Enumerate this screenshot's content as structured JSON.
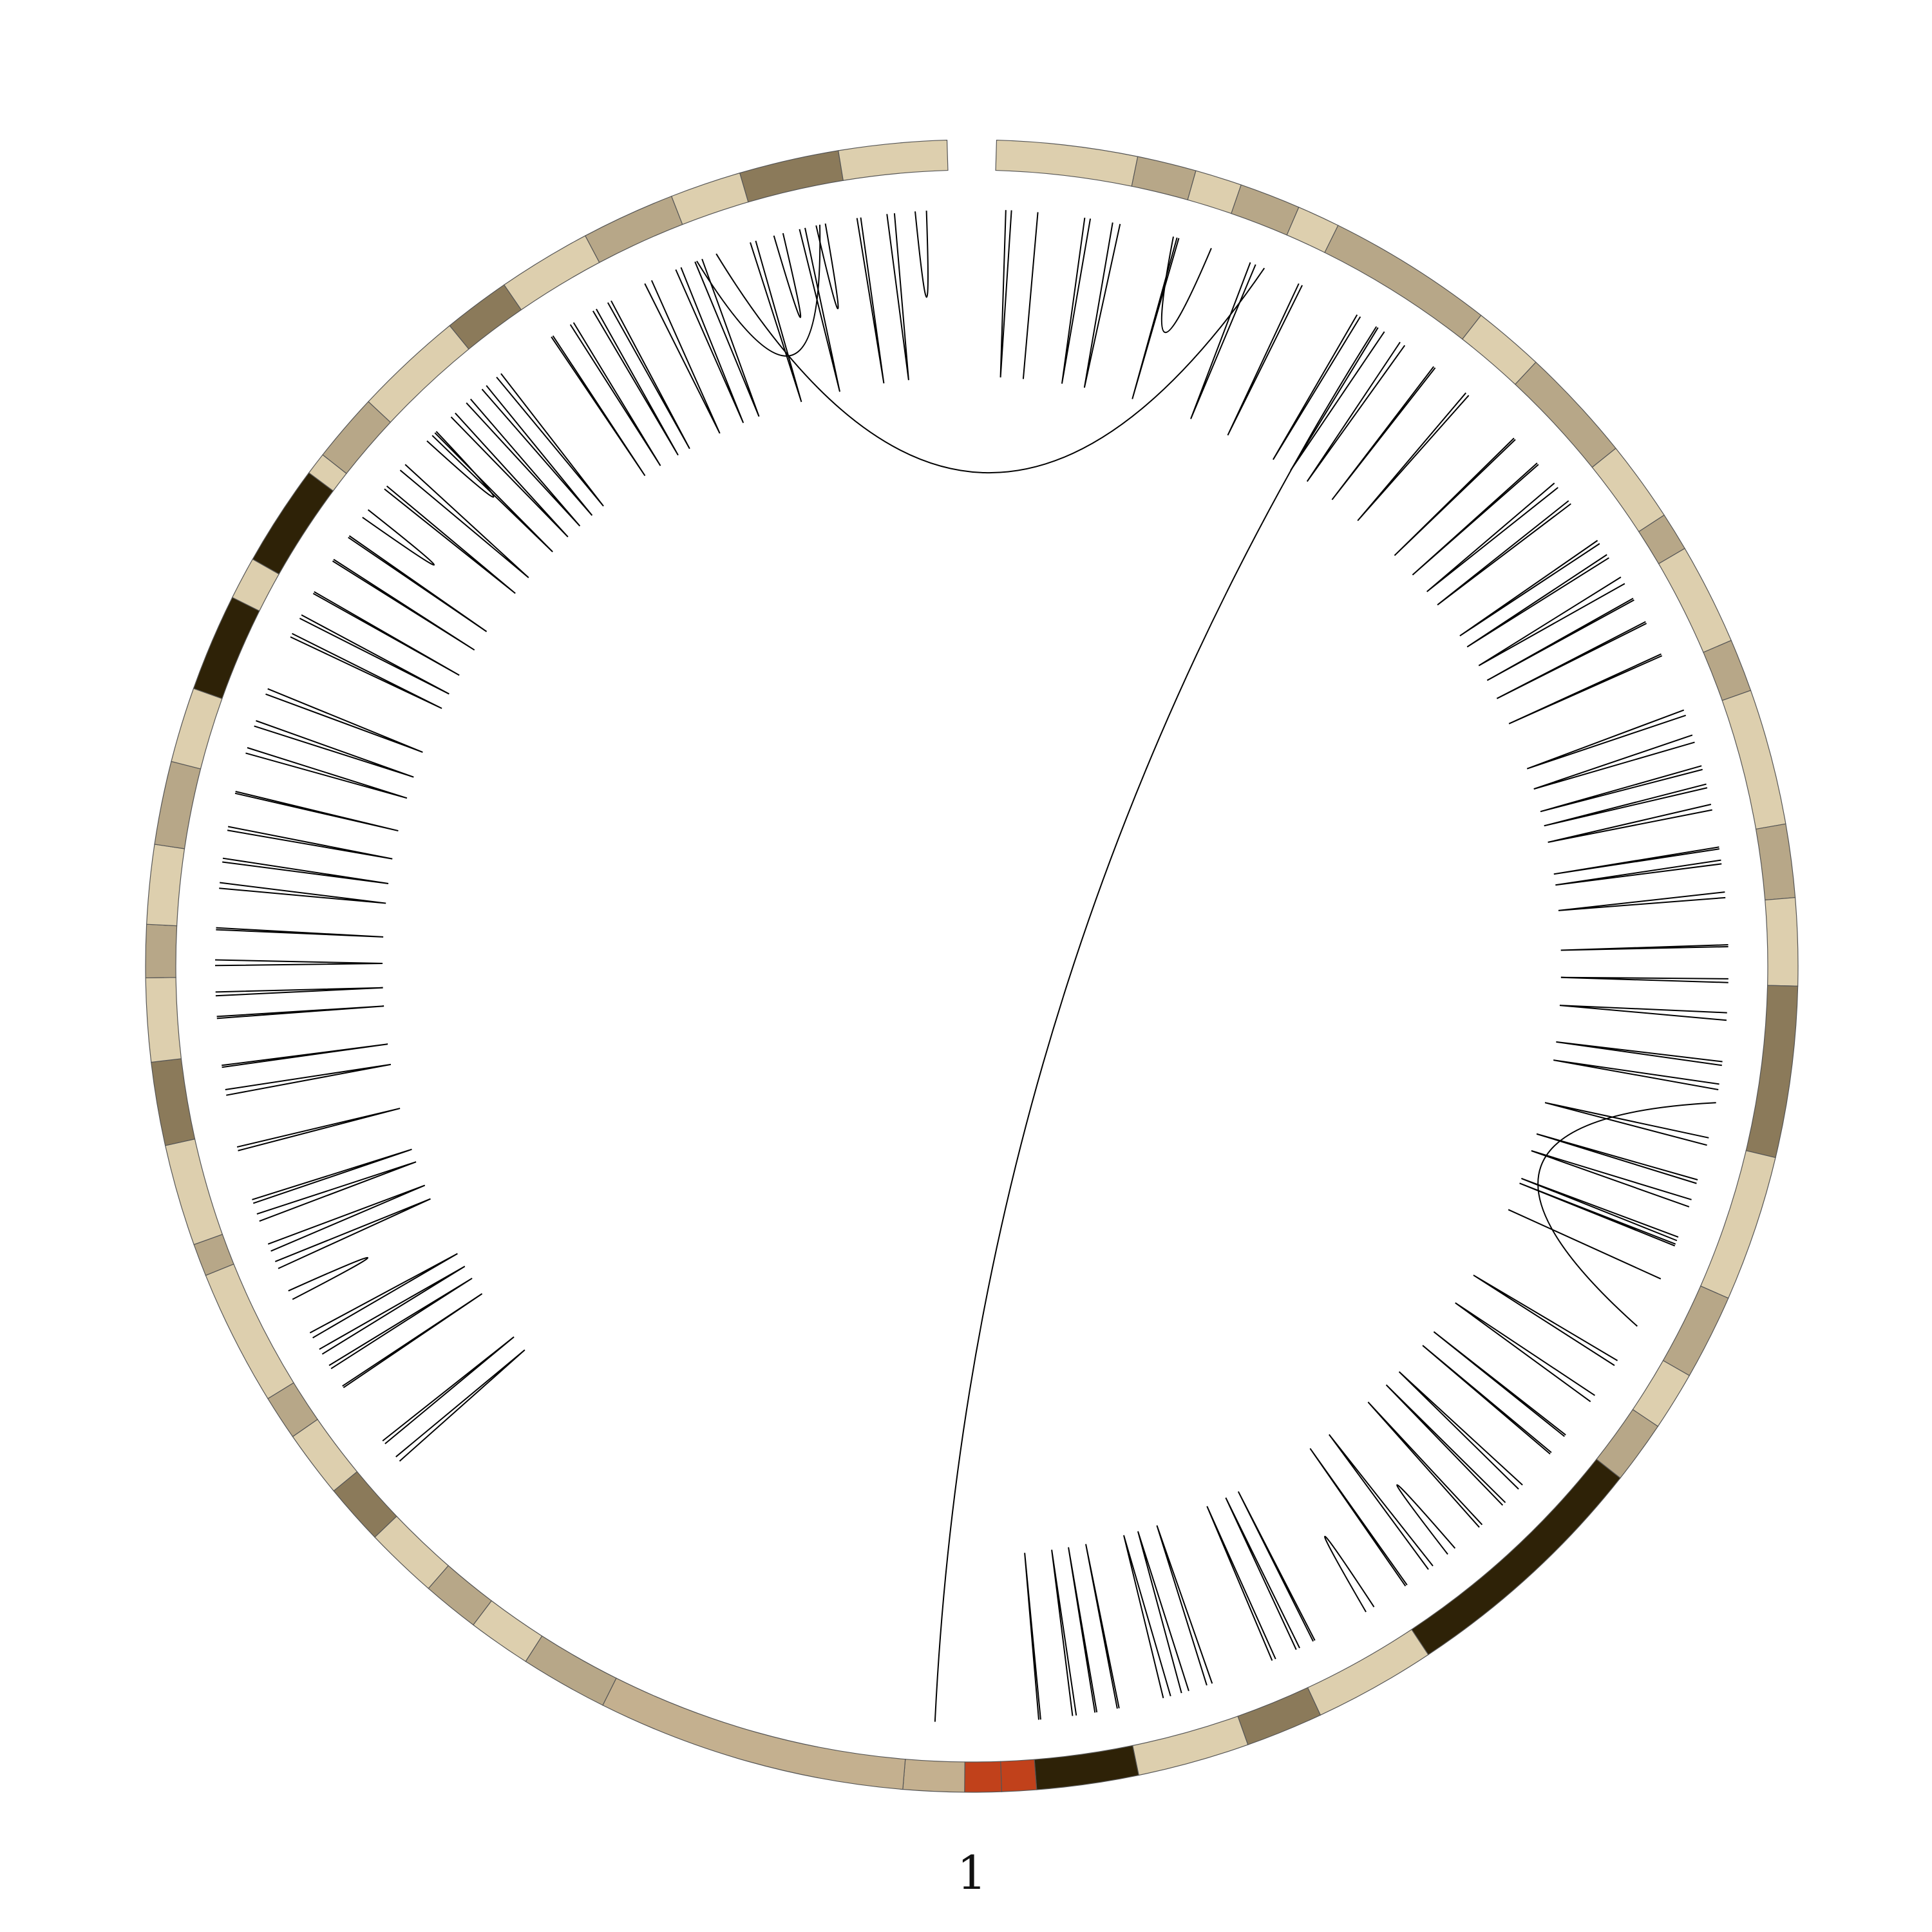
{
  "chromosome_label": "1",
  "ideogram": {
    "stain_colors": {
      "gneg": "#ddcfae",
      "gpos25": "#b7a788",
      "gpos50": "#8b7a5a",
      "gpos100": "#2e2207",
      "acen": "#c1411b",
      "gvar": "#c4b08f"
    },
    "outline_color": "#555555",
    "bands": [
      {
        "start": 0.0,
        "end": 6.9,
        "stain": "gneg"
      },
      {
        "start": 6.9,
        "end": 9.8,
        "stain": "gpos25"
      },
      {
        "start": 9.8,
        "end": 12.1,
        "stain": "gneg"
      },
      {
        "start": 12.1,
        "end": 15.1,
        "stain": "gpos25"
      },
      {
        "start": 15.1,
        "end": 17.2,
        "stain": "gneg"
      },
      {
        "start": 17.2,
        "end": 25.4,
        "stain": "gpos25"
      },
      {
        "start": 25.4,
        "end": 28.9,
        "stain": "gneg"
      },
      {
        "start": 28.9,
        "end": 34.6,
        "stain": "gpos25"
      },
      {
        "start": 34.6,
        "end": 38.6,
        "stain": "gneg"
      },
      {
        "start": 38.6,
        "end": 40.5,
        "stain": "gpos25"
      },
      {
        "start": 40.5,
        "end": 45.5,
        "stain": "gneg"
      },
      {
        "start": 45.5,
        "end": 48.1,
        "stain": "gpos25"
      },
      {
        "start": 48.1,
        "end": 54.8,
        "stain": "gneg"
      },
      {
        "start": 54.8,
        "end": 58.4,
        "stain": "gpos25"
      },
      {
        "start": 58.4,
        "end": 62.7,
        "stain": "gneg"
      },
      {
        "start": 62.7,
        "end": 71.1,
        "stain": "gpos50"
      },
      {
        "start": 71.1,
        "end": 78.3,
        "stain": "gneg"
      },
      {
        "start": 78.3,
        "end": 82.5,
        "stain": "gpos25"
      },
      {
        "start": 82.5,
        "end": 85.4,
        "stain": "gneg"
      },
      {
        "start": 85.4,
        "end": 88.5,
        "stain": "gpos25"
      },
      {
        "start": 88.5,
        "end": 101.2,
        "stain": "gpos100"
      },
      {
        "start": 101.2,
        "end": 107.2,
        "stain": "gneg"
      },
      {
        "start": 107.2,
        "end": 111.0,
        "stain": "gpos50"
      },
      {
        "start": 111.0,
        "end": 116.5,
        "stain": "gneg"
      },
      {
        "start": 116.5,
        "end": 121.5,
        "stain": "gpos100"
      },
      {
        "start": 121.5,
        "end": 123.2,
        "stain": "acen"
      },
      {
        "start": 123.2,
        "end": 125.0,
        "stain": "acen"
      },
      {
        "start": 125.0,
        "end": 128.0,
        "stain": "gvar"
      },
      {
        "start": 128.0,
        "end": 143.2,
        "stain": "gvar"
      },
      {
        "start": 143.2,
        "end": 147.5,
        "stain": "gpos25"
      },
      {
        "start": 147.5,
        "end": 150.6,
        "stain": "gneg"
      },
      {
        "start": 150.6,
        "end": 153.4,
        "stain": "gpos25"
      },
      {
        "start": 153.4,
        "end": 157.0,
        "stain": "gneg"
      },
      {
        "start": 157.0,
        "end": 160.0,
        "stain": "gpos50"
      },
      {
        "start": 160.0,
        "end": 163.3,
        "stain": "gneg"
      },
      {
        "start": 163.3,
        "end": 165.5,
        "stain": "gpos25"
      },
      {
        "start": 165.5,
        "end": 172.2,
        "stain": "gneg"
      },
      {
        "start": 172.2,
        "end": 173.8,
        "stain": "gpos25"
      },
      {
        "start": 173.8,
        "end": 178.8,
        "stain": "gneg"
      },
      {
        "start": 178.8,
        "end": 182.9,
        "stain": "gpos50"
      },
      {
        "start": 182.9,
        "end": 187.0,
        "stain": "gneg"
      },
      {
        "start": 187.0,
        "end": 189.6,
        "stain": "gpos25"
      },
      {
        "start": 189.6,
        "end": 193.5,
        "stain": "gneg"
      },
      {
        "start": 193.5,
        "end": 197.6,
        "stain": "gpos25"
      },
      {
        "start": 197.6,
        "end": 201.3,
        "stain": "gneg"
      },
      {
        "start": 201.3,
        "end": 206.1,
        "stain": "gpos100"
      },
      {
        "start": 206.1,
        "end": 208.2,
        "stain": "gneg"
      },
      {
        "start": 208.2,
        "end": 213.2,
        "stain": "gpos100"
      },
      {
        "start": 213.2,
        "end": 214.3,
        "stain": "gneg"
      },
      {
        "start": 214.3,
        "end": 217.7,
        "stain": "gpos25"
      },
      {
        "start": 217.7,
        "end": 223.1,
        "stain": "gneg"
      },
      {
        "start": 223.1,
        "end": 226.4,
        "stain": "gpos50"
      },
      {
        "start": 226.4,
        "end": 231.0,
        "stain": "gneg"
      },
      {
        "start": 231.0,
        "end": 235.6,
        "stain": "gpos25"
      },
      {
        "start": 235.6,
        "end": 239.1,
        "stain": "gneg"
      },
      {
        "start": 239.1,
        "end": 244.0,
        "stain": "gpos50"
      },
      {
        "start": 244.0,
        "end": 249.3,
        "stain": "gneg"
      }
    ]
  },
  "links": [
    [
      0.6,
      0.9
    ],
    [
      2.3,
      2.3
    ],
    [
      5.1,
      4.8
    ],
    [
      6.3,
      6.7
    ],
    [
      9.8,
      9.9
    ],
    [
      13.9,
      14.2
    ],
    [
      16.7,
      16.9
    ],
    [
      20.4,
      20.2
    ],
    [
      21.5,
      21.9
    ],
    [
      22.9,
      23.2
    ],
    [
      25.2,
      25.1
    ],
    [
      27.3,
      27.5
    ],
    [
      30.8,
      30.9
    ],
    [
      32.6,
      32.7
    ],
    [
      34.0,
      34.3
    ],
    [
      35.4,
      35.2
    ],
    [
      37.8,
      38.0
    ],
    [
      38.7,
      38.9
    ],
    [
      40.1,
      40.5
    ],
    [
      41.5,
      41.4
    ],
    [
      42.8,
      42.9
    ],
    [
      44.7,
      44.8
    ],
    [
      48.2,
      47.9
    ],
    [
      49.3,
      49.7
    ],
    [
      51.0,
      51.2
    ],
    [
      52.0,
      52.2
    ],
    [
      53.1,
      53.4
    ],
    [
      55.4,
      55.5
    ],
    [
      56.1,
      56.3
    ],
    [
      57.8,
      58.1
    ],
    [
      60.6,
      60.7
    ],
    [
      62.4,
      62.6
    ],
    [
      64.2,
      64.6
    ],
    [
      66.8,
      67.0
    ],
    [
      68.0,
      68.3
    ],
    [
      70.9,
      71.3
    ],
    [
      73.2,
      73.4
    ],
    [
      74.3,
      74.7
    ],
    [
      76.6,
      76.4
    ],
    [
      76.8,
      76.9
    ],
    [
      78.8,
      78.8
    ],
    [
      83.7,
      84.0
    ],
    [
      85.9,
      86.3
    ],
    [
      88.6,
      88.5
    ],
    [
      89.7,
      89.8
    ],
    [
      92.0,
      92.3
    ],
    [
      93.3,
      93.5
    ],
    [
      95.0,
      95.2
    ],
    [
      96.9,
      97.4
    ],
    [
      98.4,
      98.7
    ],
    [
      100.1,
      100.2
    ],
    [
      102.2,
      102.7
    ],
    [
      105.8,
      105.9
    ],
    [
      106.7,
      106.9
    ],
    [
      108.1,
      108.3
    ],
    [
      111.7,
      112.0
    ],
    [
      113.0,
      113.4
    ],
    [
      114.0,
      114.4
    ],
    [
      116.8,
      116.9
    ],
    [
      118.0,
      118.1
    ],
    [
      119.1,
      119.3
    ],
    [
      121.0,
      121.1
    ],
    [
      159.0,
      159.3
    ],
    [
      160.2,
      160.4
    ],
    [
      163.9,
      164.0
    ],
    [
      165.1,
      165.3
    ],
    [
      166.0,
      166.3
    ],
    [
      167.0,
      167.3
    ],
    [
      169.3,
      169.8
    ],
    [
      171.1,
      171.5
    ],
    [
      172.1,
      172.5
    ],
    [
      173.8,
      174.2
    ],
    [
      174.8,
      175.0
    ],
    [
      177.7,
      177.9
    ],
    [
      180.7,
      181.0
    ],
    [
      182.2,
      182.3
    ],
    [
      184.8,
      184.9
    ],
    [
      186.0,
      186.2
    ],
    [
      187.6,
      187.9
    ],
    [
      189.5,
      189.6
    ],
    [
      191.7,
      192.0
    ],
    [
      193.1,
      193.3
    ],
    [
      194.8,
      195.0
    ],
    [
      196.8,
      196.9
    ],
    [
      199.0,
      199.3
    ],
    [
      200.5,
      200.8
    ],
    [
      202.3,
      202.6
    ],
    [
      205.6,
      205.8
    ],
    [
      206.7,
      206.9
    ],
    [
      208.2,
      208.3
    ],
    [
      210.3,
      210.2
    ],
    [
      211.7,
      211.8
    ],
    [
      213.0,
      213.5
    ],
    [
      214.9,
      215.1
    ],
    [
      216.2,
      216.6
    ],
    [
      218.7,
      218.9
    ],
    [
      220.1,
      220.4
    ],
    [
      221.2,
      221.5
    ],
    [
      222.3,
      222.6
    ],
    [
      223.3,
      223.6
    ],
    [
      226.9,
      227.0
    ],
    [
      228.1,
      228.3
    ],
    [
      229.5,
      229.7
    ],
    [
      230.4,
      230.6
    ],
    [
      232.6,
      233.0
    ],
    [
      234.4,
      234.7
    ],
    [
      235.5,
      235.9
    ],
    [
      238.6,
      238.9
    ],
    [
      239.9,
      240.4
    ],
    [
      241.3,
      241.6
    ],
    [
      242.2,
      242.7
    ],
    [
      244.4,
      244.6
    ],
    [
      246.0,
      246.4
    ],
    [
      247.5,
      248.1
    ],
    [
      126.6,
      21.4
    ],
    [
      235.6,
      242.4
    ],
    [
      69.0,
      81.6
    ],
    [
      9.6,
      11.7
    ],
    [
      236.7,
      14.7
    ],
    [
      218.3,
      219.0
    ]
  ]
}
